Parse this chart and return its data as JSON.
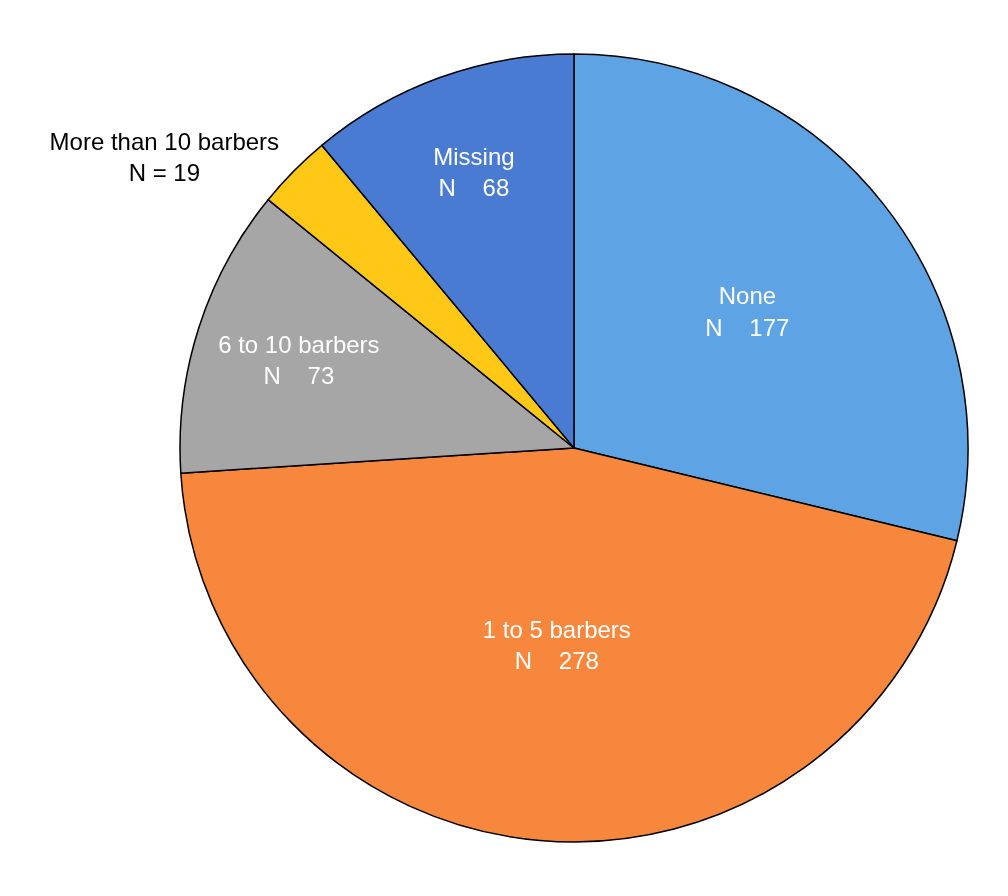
{
  "chart_data": {
    "type": "pie",
    "categories": [
      "None",
      "1 to 5 barbers",
      "6 to 10 barbers",
      "More than 10 barbers",
      "Missing"
    ],
    "values": [
      177,
      278,
      73,
      19,
      68
    ],
    "value_labels": [
      "N    177",
      "N    278",
      "N    73",
      "N = 19",
      "N    68"
    ],
    "colors": [
      "#5ea3e3",
      "#f7873c",
      "#a6a6a6",
      "#ffc716",
      "#4a7bd2"
    ],
    "legend": false
  }
}
